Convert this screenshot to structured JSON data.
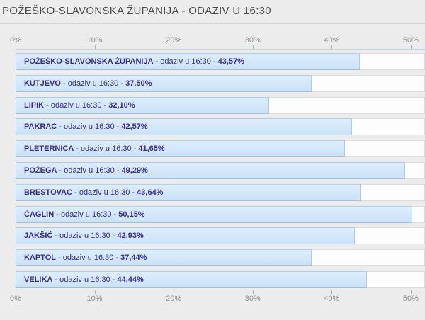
{
  "title": "POŽEŠKO-SLAVONSKA ŽUPANIJA - ODAZIV U 16:30",
  "colors": {
    "page_bg": "#ececec",
    "title_color": "#4b4b4b",
    "divider_color": "#d3d3d3",
    "axis_label_color": "#8f8f8f",
    "axis_tick_color": "#a8b4c0",
    "plot_top_line_color": "#bdd5ea",
    "plot_bottom_line_color": "#c6c6c6",
    "track_bg": "#fdfdfd",
    "track_border": "#dcdcdc",
    "bar_fill_top": "#ddeefd",
    "bar_fill_bottom": "#cbe2f7",
    "bar_border": "#accced",
    "bar_border_bottom": "#9fc0de",
    "bar_label_color": "#3b2b8c"
  },
  "chart_data": {
    "type": "bar",
    "orientation": "horizontal",
    "title": "POŽEŠKO-SLAVONSKA ŽUPANIJA - ODAZIV U 16:30",
    "categories": [
      "POŽEŠKO-SLAVONSKA ŽUPANIJA",
      "KUTJEVO",
      "LIPIK",
      "PAKRAC",
      "PLETERNICA",
      "POŽEGA",
      "BRESTOVAC",
      "ČAGLIN",
      "JAKŠIĆ",
      "KAPTOL",
      "VELIKA"
    ],
    "values": [
      43.57,
      37.5,
      32.1,
      42.57,
      41.65,
      49.29,
      43.64,
      50.15,
      42.93,
      37.44,
      44.44
    ],
    "value_display": [
      "43,57%",
      "37,50%",
      "32,10%",
      "42,57%",
      "41,65%",
      "49,29%",
      "43,64%",
      "50,15%",
      "42,93%",
      "37,44%",
      "44,44%"
    ],
    "bar_label_infix": " - odaziv u 16:30 - ",
    "tick_labels": [
      "0%",
      "10%",
      "20%",
      "30%",
      "40%",
      "50%"
    ],
    "tick_values": [
      0,
      10,
      20,
      30,
      40,
      50
    ],
    "xlim": [
      0,
      51.8
    ],
    "layout_hints": {
      "axis_labels_shown": "top_and_bottom",
      "gridlines": false,
      "legend": false,
      "value_labels_inside_bars": true
    }
  }
}
